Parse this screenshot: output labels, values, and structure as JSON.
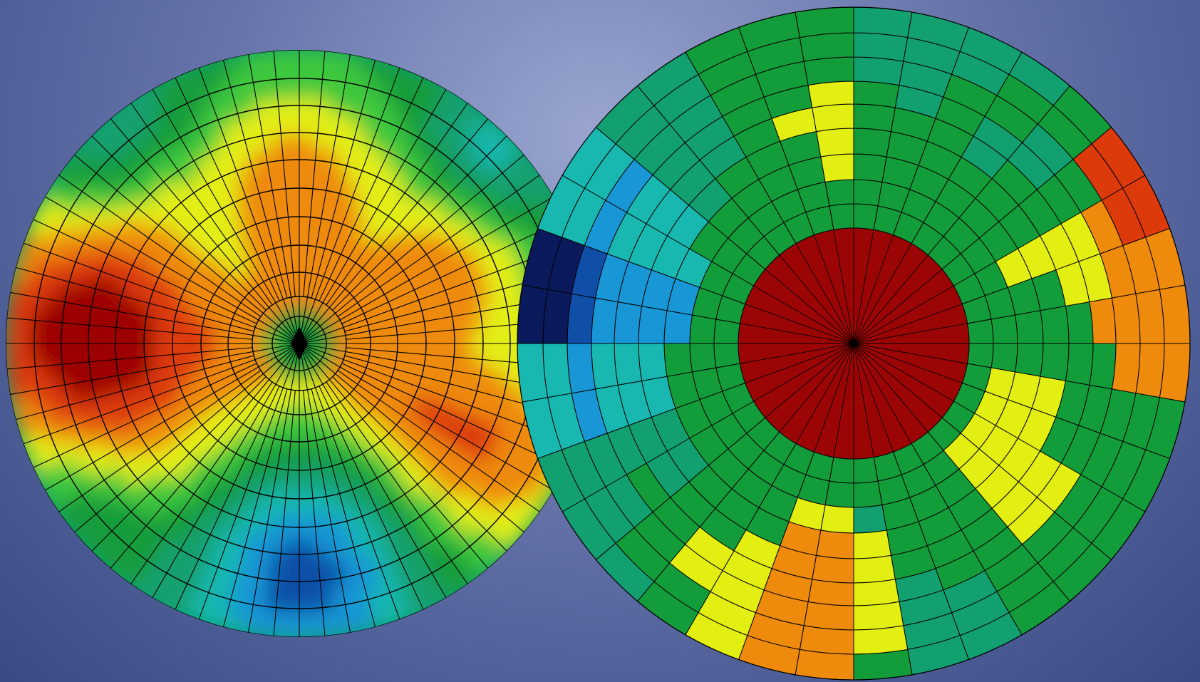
{
  "colors": {
    "background_top": "#9aa6d0",
    "background_bottom": "#394a85",
    "grid_line": "#000000",
    "scale": [
      "#0a1a5c",
      "#0f4fa8",
      "#1896d6",
      "#18b8b0",
      "#12a070",
      "#139c3a",
      "#3cc83c",
      "#e3ee12",
      "#ee8a0c",
      "#dd3a0c",
      "#9c0505"
    ]
  },
  "smooth_disc": {
    "description_visible": false,
    "rings": 12,
    "spokes": 72,
    "hot_directions_deg": [
      180,
      90,
      330,
      25
    ],
    "cold_directions_deg": [
      270,
      45,
      135
    ]
  },
  "segmented_disc": {
    "rings": 9,
    "sectors": 36,
    "center_ring_level": 10,
    "cells": [
      [
        5,
        5,
        5,
        5,
        5,
        5,
        5,
        5,
        5,
        5,
        5,
        5,
        5,
        5,
        5,
        5,
        5,
        5,
        5,
        5,
        5,
        5,
        5,
        5,
        5,
        5,
        5,
        5,
        5,
        5,
        5,
        5,
        5,
        5,
        5,
        5
      ],
      [
        5,
        5,
        5,
        5,
        5,
        5,
        5,
        5,
        5,
        5,
        7,
        7,
        7,
        7,
        5,
        5,
        5,
        5,
        5,
        5,
        5,
        5,
        5,
        5,
        5,
        5,
        5,
        5,
        5,
        5,
        5,
        5,
        5,
        5,
        5,
        5
      ],
      [
        5,
        5,
        5,
        5,
        5,
        5,
        7,
        5,
        5,
        5,
        7,
        7,
        7,
        7,
        5,
        5,
        5,
        4,
        7,
        7,
        5,
        5,
        5,
        5,
        5,
        5,
        5,
        2,
        2,
        3,
        5,
        5,
        5,
        5,
        5,
        7
      ],
      [
        5,
        5,
        5,
        5,
        5,
        5,
        7,
        5,
        5,
        5,
        7,
        7,
        7,
        7,
        5,
        5,
        5,
        7,
        8,
        8,
        5,
        5,
        5,
        4,
        4,
        3,
        3,
        2,
        2,
        3,
        3,
        4,
        5,
        5,
        5,
        7
      ],
      [
        5,
        5,
        5,
        4,
        5,
        5,
        7,
        7,
        5,
        5,
        5,
        5,
        7,
        7,
        5,
        5,
        5,
        7,
        8,
        8,
        7,
        5,
        5,
        4,
        4,
        3,
        3,
        2,
        2,
        3,
        3,
        4,
        4,
        5,
        7,
        7
      ],
      [
        5,
        4,
        5,
        4,
        4,
        5,
        7,
        7,
        8,
        5,
        5,
        5,
        7,
        7,
        5,
        5,
        4,
        7,
        8,
        8,
        7,
        7,
        5,
        5,
        4,
        3,
        3,
        2,
        2,
        3,
        3,
        4,
        4,
        5,
        5,
        7
      ],
      [
        4,
        4,
        5,
        5,
        4,
        5,
        8,
        8,
        8,
        8,
        5,
        5,
        5,
        5,
        5,
        4,
        4,
        7,
        8,
        8,
        7,
        7,
        5,
        4,
        4,
        2,
        2,
        1,
        1,
        2,
        2,
        4,
        4,
        5,
        5,
        5
      ],
      [
        4,
        4,
        4,
        5,
        5,
        9,
        9,
        8,
        8,
        8,
        5,
        5,
        5,
        5,
        5,
        4,
        4,
        7,
        8,
        8,
        7,
        5,
        5,
        4,
        4,
        3,
        3,
        0,
        0,
        3,
        3,
        4,
        4,
        5,
        5,
        5
      ],
      [
        4,
        4,
        4,
        4,
        5,
        9,
        9,
        8,
        8,
        8,
        5,
        5,
        5,
        5,
        5,
        4,
        4,
        5,
        8,
        8,
        7,
        5,
        4,
        4,
        4,
        3,
        3,
        0,
        0,
        3,
        3,
        4,
        4,
        5,
        5,
        5
      ]
    ]
  }
}
